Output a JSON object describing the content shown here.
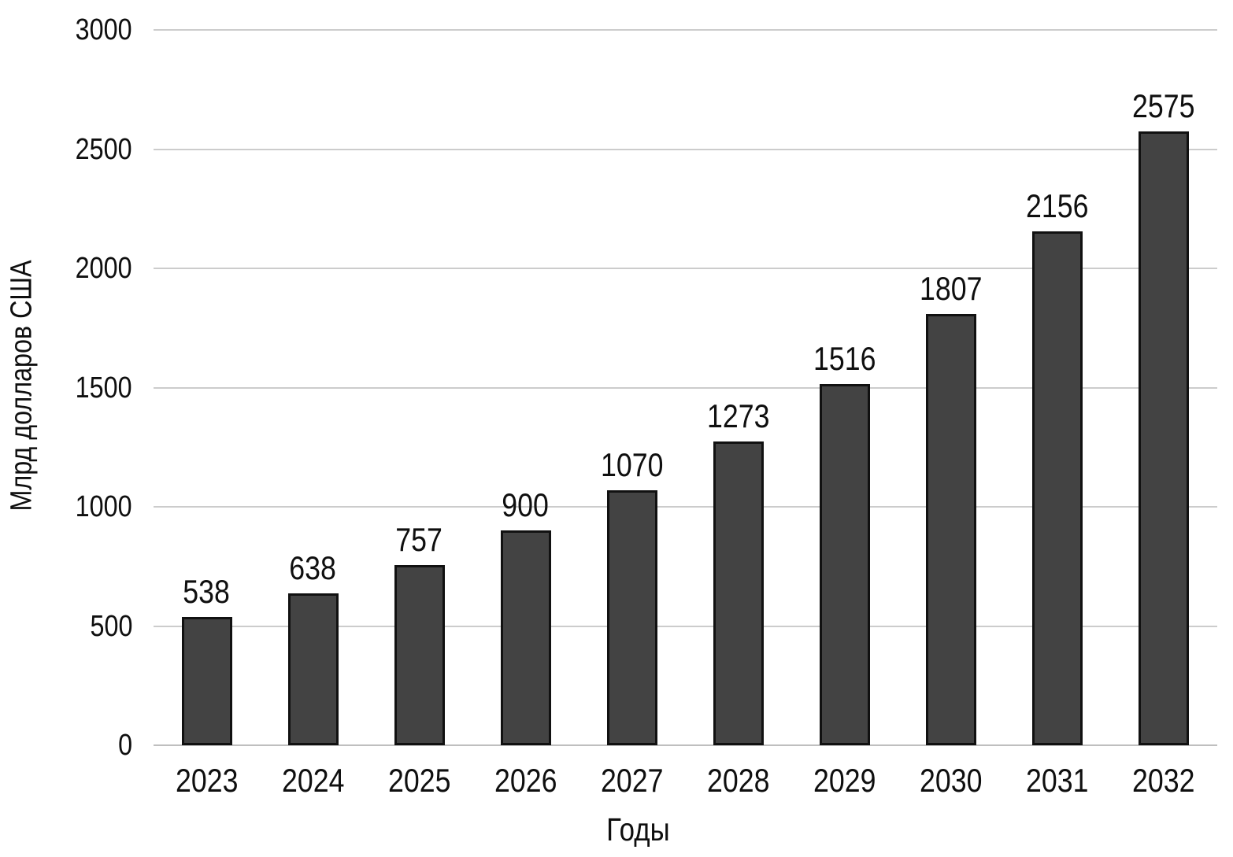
{
  "chart_data": {
    "type": "bar",
    "categories": [
      "2023",
      "2024",
      "2025",
      "2026",
      "2027",
      "2028",
      "2029",
      "2030",
      "2031",
      "2032"
    ],
    "values": [
      538,
      638,
      757,
      900,
      1070,
      1273,
      1516,
      1807,
      2156,
      2575
    ],
    "title": "",
    "xlabel": "Годы",
    "ylabel": "Млрд долларов США",
    "ylim": [
      0,
      3000
    ],
    "yticks": [
      0,
      500,
      1000,
      1500,
      2000,
      2500,
      3000
    ],
    "grid": true,
    "legend": "none",
    "bar_color": "#434343",
    "bar_border_color": "#111111",
    "gridline_color": "#cccccc",
    "baseline_color": "#bfbfbf",
    "text_color": "#0f0f0f",
    "background_color": "#ffffff"
  }
}
